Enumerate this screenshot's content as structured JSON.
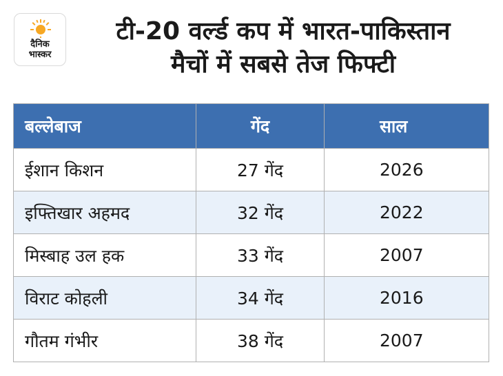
{
  "logo": {
    "line1": "दैनिक",
    "line2": "भास्कर",
    "accent": "#f7a823"
  },
  "title": {
    "line1": "टी-20 वर्ल्ड कप में भारत-पाकिस्तान",
    "line2": "मैचों में सबसे तेज फिफ्टी"
  },
  "table": {
    "headers": [
      "बल्लेबाज",
      "गेंद",
      "साल"
    ],
    "rows": [
      [
        "ईशान किशन",
        "27 गेंद",
        "2026"
      ],
      [
        "इफ्तिखार अहमद",
        "32 गेंद",
        "2022"
      ],
      [
        "मिस्बाह उल हक",
        "33 गेंद",
        "2007"
      ],
      [
        "विराट कोहली",
        "34 गेंद",
        "2016"
      ],
      [
        "गौतम गंभीर",
        "38 गेंद",
        "2007"
      ]
    ],
    "header_color": "#3d6fb0",
    "stripe_color": "#e9f1fa"
  }
}
